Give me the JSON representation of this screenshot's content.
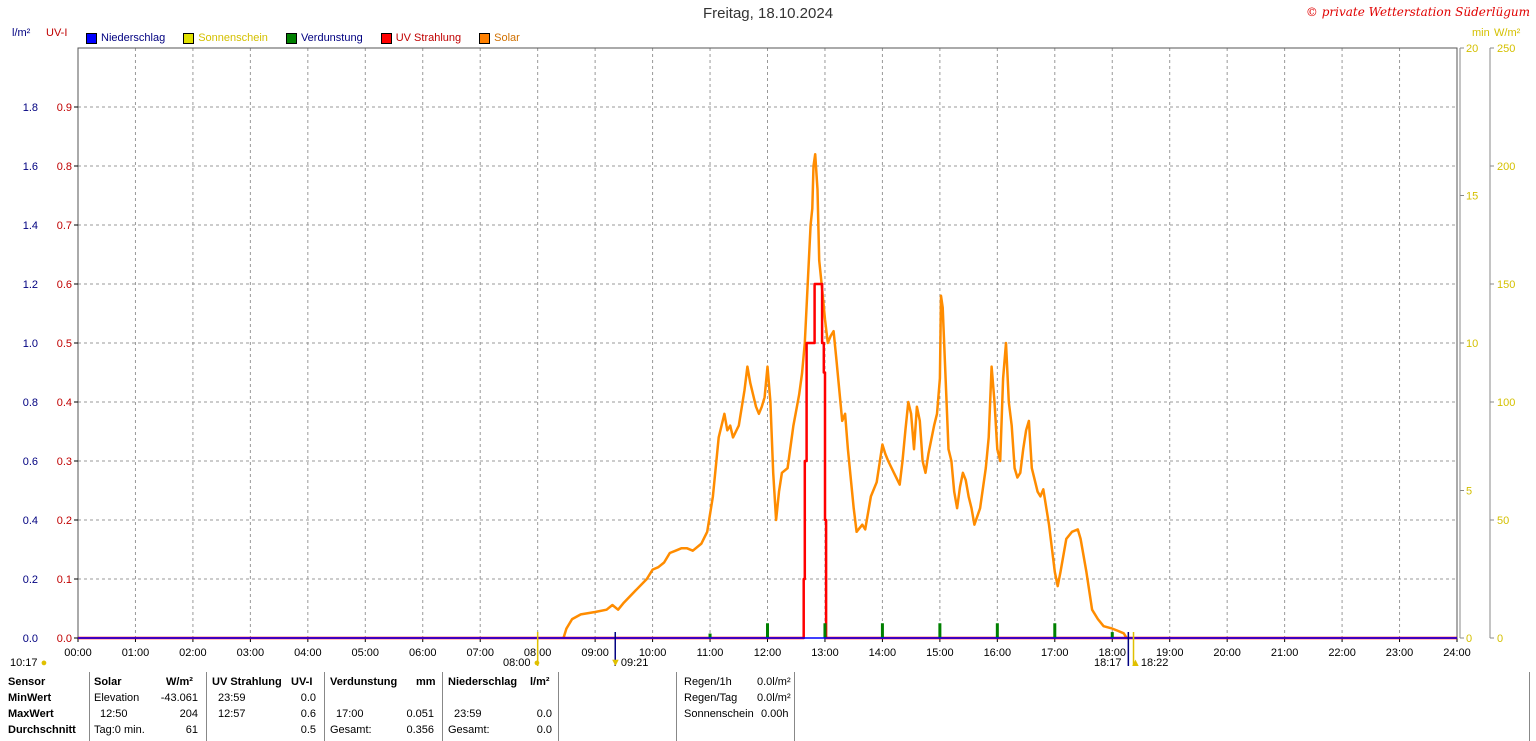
{
  "title": "Freitag, 18.10.2024",
  "copyright": "© private Wetterstation Süderlügum",
  "units": {
    "left_outer": "l/m²",
    "left_inner": "UV-I",
    "right_inner": "min",
    "right_outer": "W/m²"
  },
  "legend": [
    {
      "label": "Niederschlag",
      "color": "#0000ff",
      "text_color": "#000080"
    },
    {
      "label": "Sonnenschein",
      "color": "#e0e000",
      "text_color": "#d4c000"
    },
    {
      "label": "Verdunstung",
      "color": "#008000",
      "text_color": "#000080"
    },
    {
      "label": "UV Strahlung",
      "color": "#ff0000",
      "text_color": "#c00000"
    },
    {
      "label": "Solar",
      "color": "#ff8000",
      "text_color": "#d07000"
    }
  ],
  "colors": {
    "solar": "#ff8c00",
    "uv": "#ff0000",
    "verdunstung": "#008000",
    "niederschlag": "#0000ff",
    "sunshine_axis": "#d4c000"
  },
  "chart_data": {
    "type": "line",
    "x_unit": "hour of day",
    "xlim": [
      0,
      24
    ],
    "x_ticks": [
      "00:00",
      "01:00",
      "02:00",
      "03:00",
      "04:00",
      "05:00",
      "06:00",
      "07:00",
      "08:00",
      "09:00",
      "10:00",
      "11:00",
      "12:00",
      "13:00",
      "14:00",
      "15:00",
      "16:00",
      "17:00",
      "18:00",
      "19:00",
      "20:00",
      "21:00",
      "22:00",
      "23:00",
      "24:00"
    ],
    "axes": {
      "niederschlag": {
        "ylim": [
          0,
          2.0
        ],
        "ticks": [
          "0.0",
          "0.2",
          "0.4",
          "0.6",
          "0.8",
          "1.0",
          "1.2",
          "1.4",
          "1.6",
          "1.8"
        ]
      },
      "uv": {
        "ylim": [
          0,
          1.0
        ],
        "ticks": [
          "0.0",
          "0.1",
          "0.2",
          "0.3",
          "0.4",
          "0.5",
          "0.6",
          "0.7",
          "0.8",
          "0.9"
        ]
      },
      "sonnenschein": {
        "ylim": [
          0,
          20
        ],
        "ticks": [
          "0",
          "5",
          "10",
          "15",
          "20"
        ]
      },
      "solar": {
        "ylim": [
          0,
          250
        ],
        "ticks": [
          "0",
          "50",
          "100",
          "150",
          "200",
          "250"
        ]
      }
    },
    "grid": true,
    "series": [
      {
        "name": "Solar",
        "axis": "solar",
        "points": [
          [
            8.45,
            0
          ],
          [
            8.5,
            4
          ],
          [
            8.6,
            8
          ],
          [
            8.75,
            10
          ],
          [
            9.0,
            11
          ],
          [
            9.2,
            12
          ],
          [
            9.3,
            14
          ],
          [
            9.4,
            12
          ],
          [
            9.5,
            15
          ],
          [
            9.7,
            20
          ],
          [
            9.9,
            25
          ],
          [
            10.0,
            29
          ],
          [
            10.1,
            30
          ],
          [
            10.2,
            32
          ],
          [
            10.3,
            36
          ],
          [
            10.4,
            37
          ],
          [
            10.5,
            38
          ],
          [
            10.6,
            38
          ],
          [
            10.7,
            37
          ],
          [
            10.85,
            40
          ],
          [
            10.95,
            45
          ],
          [
            11.05,
            60
          ],
          [
            11.15,
            85
          ],
          [
            11.25,
            95
          ],
          [
            11.3,
            88
          ],
          [
            11.35,
            90
          ],
          [
            11.4,
            85
          ],
          [
            11.5,
            90
          ],
          [
            11.6,
            105
          ],
          [
            11.65,
            115
          ],
          [
            11.7,
            108
          ],
          [
            11.8,
            98
          ],
          [
            11.85,
            95
          ],
          [
            11.9,
            98
          ],
          [
            11.95,
            102
          ],
          [
            12.0,
            115
          ],
          [
            12.05,
            100
          ],
          [
            12.1,
            70
          ],
          [
            12.15,
            50
          ],
          [
            12.2,
            62
          ],
          [
            12.25,
            70
          ],
          [
            12.35,
            72
          ],
          [
            12.45,
            90
          ],
          [
            12.55,
            103
          ],
          [
            12.6,
            112
          ],
          [
            12.65,
            125
          ],
          [
            12.7,
            150
          ],
          [
            12.75,
            175
          ],
          [
            12.78,
            182
          ],
          [
            12.8,
            200
          ],
          [
            12.83,
            205
          ],
          [
            12.87,
            190
          ],
          [
            12.9,
            160
          ],
          [
            12.95,
            148
          ],
          [
            13.0,
            135
          ],
          [
            13.05,
            125
          ],
          [
            13.1,
            128
          ],
          [
            13.15,
            130
          ],
          [
            13.2,
            118
          ],
          [
            13.3,
            92
          ],
          [
            13.35,
            95
          ],
          [
            13.4,
            80
          ],
          [
            13.5,
            55
          ],
          [
            13.55,
            45
          ],
          [
            13.65,
            48
          ],
          [
            13.7,
            46
          ],
          [
            13.8,
            60
          ],
          [
            13.9,
            66
          ],
          [
            14.0,
            82
          ],
          [
            14.05,
            78
          ],
          [
            14.1,
            75
          ],
          [
            14.2,
            70
          ],
          [
            14.3,
            65
          ],
          [
            14.35,
            75
          ],
          [
            14.4,
            88
          ],
          [
            14.45,
            100
          ],
          [
            14.5,
            95
          ],
          [
            14.55,
            80
          ],
          [
            14.6,
            98
          ],
          [
            14.65,
            92
          ],
          [
            14.7,
            75
          ],
          [
            14.75,
            70
          ],
          [
            14.8,
            78
          ],
          [
            14.9,
            90
          ],
          [
            14.95,
            95
          ],
          [
            15.0,
            110
          ],
          [
            15.02,
            145
          ],
          [
            15.05,
            140
          ],
          [
            15.1,
            110
          ],
          [
            15.15,
            80
          ],
          [
            15.2,
            75
          ],
          [
            15.25,
            62
          ],
          [
            15.3,
            55
          ],
          [
            15.35,
            64
          ],
          [
            15.4,
            70
          ],
          [
            15.45,
            67
          ],
          [
            15.5,
            60
          ],
          [
            15.55,
            55
          ],
          [
            15.6,
            48
          ],
          [
            15.7,
            55
          ],
          [
            15.8,
            72
          ],
          [
            15.85,
            85
          ],
          [
            15.9,
            115
          ],
          [
            15.95,
            100
          ],
          [
            16.0,
            80
          ],
          [
            16.05,
            75
          ],
          [
            16.1,
            110
          ],
          [
            16.15,
            125
          ],
          [
            16.2,
            100
          ],
          [
            16.25,
            90
          ],
          [
            16.3,
            72
          ],
          [
            16.35,
            68
          ],
          [
            16.4,
            70
          ],
          [
            16.45,
            80
          ],
          [
            16.5,
            88
          ],
          [
            16.55,
            92
          ],
          [
            16.6,
            72
          ],
          [
            16.7,
            62
          ],
          [
            16.75,
            60
          ],
          [
            16.8,
            63
          ],
          [
            16.9,
            48
          ],
          [
            17.0,
            28
          ],
          [
            17.05,
            22
          ],
          [
            17.1,
            28
          ],
          [
            17.2,
            42
          ],
          [
            17.3,
            45
          ],
          [
            17.4,
            46
          ],
          [
            17.45,
            42
          ],
          [
            17.55,
            28
          ],
          [
            17.65,
            12
          ],
          [
            17.75,
            8
          ],
          [
            17.85,
            5
          ],
          [
            18.0,
            4
          ],
          [
            18.1,
            3
          ],
          [
            18.2,
            2
          ],
          [
            18.25,
            0
          ]
        ]
      },
      {
        "name": "UV Strahlung",
        "axis": "uv",
        "points": [
          [
            0,
            0
          ],
          [
            12.63,
            0
          ],
          [
            12.63,
            0.1
          ],
          [
            12.65,
            0.1
          ],
          [
            12.65,
            0.3
          ],
          [
            12.68,
            0.3
          ],
          [
            12.68,
            0.5
          ],
          [
            12.73,
            0.5
          ],
          [
            12.75,
            0.5
          ],
          [
            12.75,
            0.5
          ],
          [
            12.82,
            0.5
          ],
          [
            12.82,
            0.6
          ],
          [
            12.95,
            0.6
          ],
          [
            12.95,
            0.5
          ],
          [
            12.98,
            0.5
          ],
          [
            12.98,
            0.45
          ],
          [
            13.0,
            0.45
          ],
          [
            13.0,
            0.2
          ],
          [
            13.02,
            0.2
          ],
          [
            13.02,
            0
          ],
          [
            24,
            0
          ]
        ]
      },
      {
        "name": "Verdunstung",
        "axis": "niederschlag",
        "points": [
          [
            11,
            0.015
          ],
          [
            12,
            0.05
          ],
          [
            13,
            0.05
          ],
          [
            14,
            0.05
          ],
          [
            15,
            0.05
          ],
          [
            16,
            0.05
          ],
          [
            17,
            0.05
          ],
          [
            18,
            0.02
          ]
        ]
      },
      {
        "name": "Niederschlag",
        "axis": "niederschlag",
        "points": [
          [
            0,
            0
          ],
          [
            24,
            0
          ]
        ]
      }
    ]
  },
  "astro": {
    "moonrise": "10:17",
    "moonset": "08:00",
    "sunrise": "09:21",
    "sunset": "18:22",
    "dusk": "18:17",
    "moonset_x": 8.0,
    "sunrise_x": 9.35,
    "dusk_x": 18.28,
    "sunset_x": 18.37
  },
  "table": {
    "row_labels": [
      "Sensor",
      "MinWert",
      "MaxWert",
      "Durchschnitt"
    ],
    "solar": {
      "header": "Solar",
      "unit": "W/m²",
      "min_label": "Elevation",
      "min_value": "-43.061",
      "max_time": "12:50",
      "max_value": "204",
      "avg_label": "Tag:0 min.",
      "avg_value": "61"
    },
    "uv": {
      "header": "UV Strahlung",
      "unit": "UV-I",
      "min_time": "23:59",
      "min_value": "0.0",
      "max_time": "12:57",
      "max_value": "0.6",
      "avg_value": "0.5"
    },
    "verdunstung": {
      "header": "Verdunstung",
      "unit": "mm",
      "max_time": "17:00",
      "max_value": "0.051",
      "total_label": "Gesamt:",
      "total_value": "0.356"
    },
    "niederschlag": {
      "header": "Niederschlag",
      "unit": "l/m²",
      "max_time": "23:59",
      "max_value": "0.0",
      "total_label": "Gesamt:",
      "total_value": "0.0"
    },
    "summary": [
      {
        "label": "Regen/1h",
        "value": "0.0l/m²"
      },
      {
        "label": "Regen/Tag",
        "value": "0.0l/m²"
      },
      {
        "label": "Sonnenschein",
        "value": "0.00h"
      }
    ]
  }
}
